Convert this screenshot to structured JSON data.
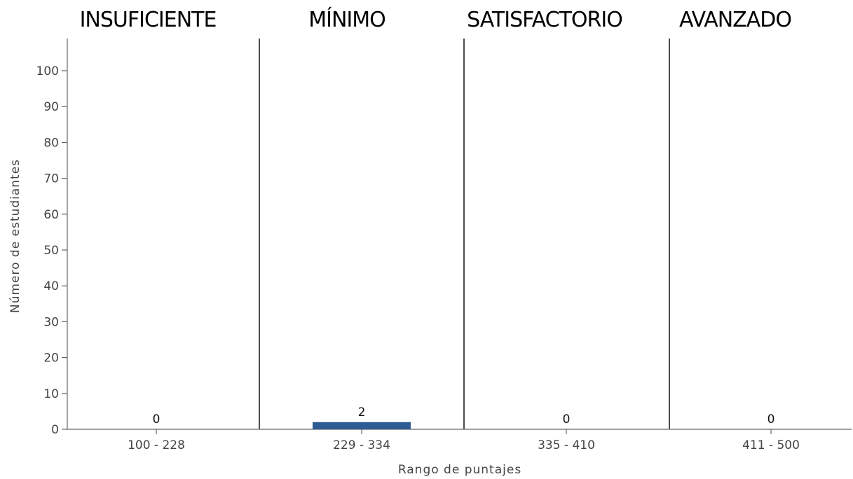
{
  "levels": [
    "INSUFICIENTE",
    "MÍNIMO",
    "SATISFACTORIO",
    "AVANZADO"
  ],
  "colors": {
    "bar": "#2e5b93",
    "axis": "#666666",
    "divider": "#000000"
  },
  "chart_data": {
    "type": "bar",
    "categories": [
      "100 - 228",
      "229 - 334",
      "335 - 410",
      "411 - 500"
    ],
    "values": [
      0,
      2,
      0,
      0
    ],
    "data_labels": [
      "0",
      "2",
      "0",
      "0"
    ],
    "title": "",
    "xlabel": "Rango de puntajes",
    "ylabel": "Número de estudiantes",
    "ylim": [
      0,
      108
    ],
    "yticks": [
      0,
      10,
      20,
      30,
      40,
      50,
      60,
      70,
      80,
      90,
      100
    ],
    "grid": false,
    "legend": "none"
  }
}
